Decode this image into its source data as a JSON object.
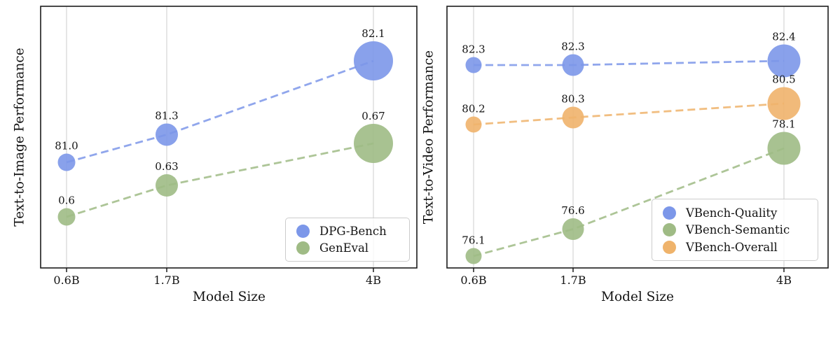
{
  "chart_data": [
    {
      "type": "scatter",
      "subtype": "bubble-line",
      "title": "",
      "ylabel": "Text-to-Image Performance",
      "xlabel": "Model Size",
      "x_tick_labels": [
        "0.6B",
        "1.7B",
        "4B"
      ],
      "x_values_billions": [
        0.6,
        1.7,
        4
      ],
      "grid": "vertical-only",
      "legend_position": "lower right",
      "bubble_size_rule": "bubble size grows with model size",
      "series": [
        {
          "name": "DPG-Bench",
          "color": "#7c97e9",
          "values": [
            81.0,
            81.3,
            82.1
          ],
          "point_labels": [
            "81.0",
            "81.3",
            "82.1"
          ],
          "line_style": "dashed"
        },
        {
          "name": "GenEval",
          "color": "#9fbb85",
          "values": [
            0.6,
            0.63,
            0.67
          ],
          "point_labels": [
            "0.6",
            "0.63",
            "0.67"
          ],
          "line_style": "dashed"
        }
      ]
    },
    {
      "type": "scatter",
      "subtype": "bubble-line",
      "title": "",
      "ylabel": "Text-to-Video Performance",
      "xlabel": "Model Size",
      "x_tick_labels": [
        "0.6B",
        "1.7B",
        "4B"
      ],
      "x_values_billions": [
        0.6,
        1.7,
        4
      ],
      "grid": "vertical-only",
      "legend_position": "center right",
      "bubble_size_rule": "bubble size grows with model size",
      "series": [
        {
          "name": "VBench-Quality",
          "color": "#7c97e9",
          "values": [
            82.3,
            82.3,
            82.4
          ],
          "point_labels": [
            "82.3",
            "82.3",
            "82.4"
          ],
          "line_style": "dashed"
        },
        {
          "name": "VBench-Semantic",
          "color": "#9fbb85",
          "values": [
            76.1,
            76.6,
            78.1
          ],
          "point_labels": [
            "76.1",
            "76.6",
            "78.1"
          ],
          "line_style": "dashed"
        },
        {
          "name": "VBench-Overall",
          "color": "#efb36b",
          "values": [
            80.2,
            80.3,
            80.5
          ],
          "point_labels": [
            "80.2",
            "80.3",
            "80.5"
          ],
          "line_style": "dashed"
        }
      ]
    }
  ]
}
